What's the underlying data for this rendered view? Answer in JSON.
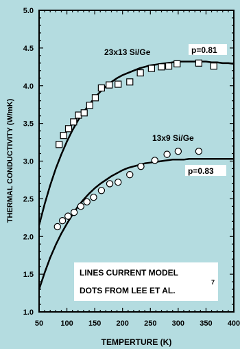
{
  "colors": {
    "background": "#b4dce0",
    "ink": "#000000",
    "marker_fill": "#ffffff"
  },
  "chart_data": {
    "type": "scatter",
    "title": "",
    "xlabel": "TEMPERTURE (K)",
    "ylabel": "THERMAL CONDUCTIVITY (W/mK)",
    "xlim": [
      50,
      400
    ],
    "ylim": [
      1.0,
      5.0
    ],
    "xticks": [
      "50",
      "100",
      "150",
      "200",
      "250",
      "300",
      "350",
      "400"
    ],
    "yticks": [
      "1.0",
      "1.5",
      "2.0",
      "2.5",
      "3.0",
      "3.5",
      "4.0",
      "4.5",
      "5.0"
    ],
    "grid": false,
    "series": [
      {
        "name": "23x13 Si/Ge",
        "marker": "square",
        "x": [
          86,
          94,
          103,
          112,
          121,
          131,
          141,
          151,
          162,
          176,
          192,
          213,
          232,
          252,
          270,
          283,
          298,
          337,
          364
        ],
        "y": [
          3.22,
          3.34,
          3.43,
          3.52,
          3.61,
          3.64,
          3.74,
          3.84,
          3.97,
          4.01,
          4.02,
          4.05,
          4.17,
          4.23,
          4.25,
          4.26,
          4.29,
          4.3,
          4.26
        ],
        "fit": {
          "x": [
            50,
            60,
            70,
            80,
            90,
            100,
            110,
            120,
            130,
            140,
            150,
            160,
            170,
            180,
            190,
            200,
            210,
            220,
            230,
            240,
            250,
            260,
            270,
            280,
            290,
            300,
            310,
            320,
            330,
            340,
            350,
            360,
            370,
            380,
            390,
            400
          ],
          "y": [
            2.15,
            2.43,
            2.68,
            2.9,
            3.09,
            3.26,
            3.41,
            3.54,
            3.65,
            3.75,
            3.84,
            3.92,
            3.99,
            4.05,
            4.1,
            4.14,
            4.17,
            4.2,
            4.23,
            4.25,
            4.27,
            4.28,
            4.29,
            4.3,
            4.31,
            4.32,
            4.32,
            4.32,
            4.32,
            4.32,
            4.32,
            4.31,
            4.31,
            4.3,
            4.3,
            4.29
          ]
        }
      },
      {
        "name": "13x9 Si/Ge",
        "marker": "circle",
        "x": [
          83,
          92,
          102,
          113,
          125,
          136,
          148,
          162,
          177,
          192,
          213,
          233,
          258,
          280,
          300,
          337
        ],
        "y": [
          2.13,
          2.21,
          2.27,
          2.32,
          2.4,
          2.46,
          2.52,
          2.61,
          2.7,
          2.72,
          2.82,
          2.93,
          3.01,
          3.09,
          3.13,
          3.13
        ],
        "fit": {
          "x": [
            50,
            60,
            70,
            80,
            90,
            100,
            110,
            120,
            130,
            140,
            150,
            160,
            170,
            180,
            190,
            200,
            210,
            220,
            230,
            240,
            250,
            260,
            270,
            280,
            290,
            300,
            310,
            320,
            330,
            340,
            350,
            360,
            370,
            380,
            390,
            400
          ],
          "y": [
            1.3,
            1.52,
            1.72,
            1.89,
            2.04,
            2.17,
            2.29,
            2.4,
            2.49,
            2.57,
            2.64,
            2.7,
            2.75,
            2.8,
            2.84,
            2.88,
            2.91,
            2.93,
            2.95,
            2.97,
            2.98,
            2.99,
            3.0,
            3.01,
            3.02,
            3.02,
            3.02,
            3.03,
            3.03,
            3.03,
            3.03,
            3.03,
            3.03,
            3.03,
            3.03,
            3.03
          ]
        }
      }
    ],
    "annotations": {
      "p_top": "p=0.81",
      "p_bottom": "p=0.83",
      "legend_line1": "LINES CURRENT MODEL",
      "legend_line2": "DOTS FROM LEE ET AL.",
      "reference": "7"
    }
  }
}
